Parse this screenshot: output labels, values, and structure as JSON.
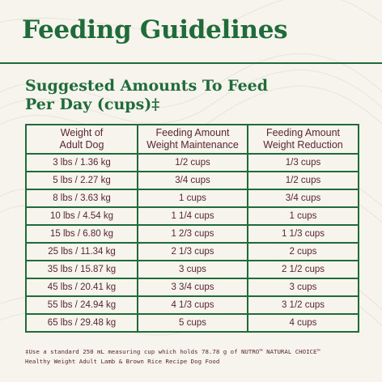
{
  "title": "Feeding Guidelines",
  "subtitle": {
    "line1": "Suggested Amounts To Feed",
    "line2": "Per Day (cups)‡"
  },
  "table": {
    "headers": [
      {
        "line1": "Weight of",
        "line2": "Adult Dog"
      },
      {
        "line1": "Feeding Amount",
        "line2": "Weight Maintenance"
      },
      {
        "line1": "Feeding Amount",
        "line2": "Weight Reduction"
      }
    ],
    "rows": [
      [
        "3 lbs / 1.36 kg",
        "1/2 cups",
        "1/3 cups"
      ],
      [
        "5 lbs / 2.27 kg",
        "3/4 cups",
        "1/2 cups"
      ],
      [
        "8 lbs / 3.63 kg",
        "1 cups",
        "3/4 cups"
      ],
      [
        "10 lbs / 4.54 kg",
        "1 1/4 cups",
        "1 cups"
      ],
      [
        "15 lbs / 6.80 kg",
        "1 2/3 cups",
        "1 1/3 cups"
      ],
      [
        "25 lbs / 11.34 kg",
        "2 1/3 cups",
        "2 cups"
      ],
      [
        "35 lbs / 15.87 kg",
        "3 cups",
        "2 1/2 cups"
      ],
      [
        "45 lbs / 20.41 kg",
        "3 3/4 cups",
        "3 cups"
      ],
      [
        "55 lbs / 24.94 kg",
        "4 1/3 cups",
        "3 1/2 cups"
      ],
      [
        "65 lbs / 29.48 kg",
        "5 cups",
        "4 cups"
      ]
    ]
  },
  "footnote": {
    "line1": "‡Use a standard 250 mL measuring cup which holds 78.78 g of NUTRO™ NATURAL CHOICE™",
    "line2": "Healthy Weight Adult Lamb & Brown Rice Recipe Dog Food"
  },
  "colors": {
    "heading_green": "#1f6b3a",
    "table_text": "#5a2630",
    "background": "#f7f4ed"
  }
}
